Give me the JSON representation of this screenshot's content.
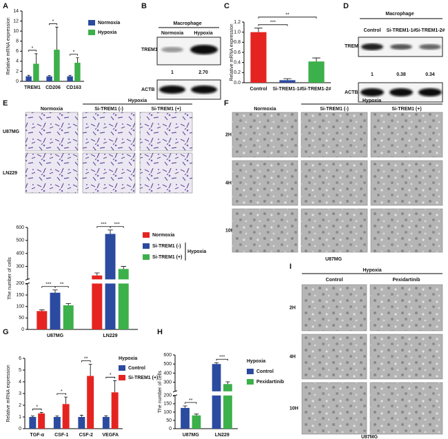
{
  "chart_data": [
    {
      "type": "bar",
      "panel": "A",
      "ylabel": "Relative mRNA expression",
      "categories": [
        "TREM1",
        "CD206",
        "CD163"
      ],
      "series": [
        {
          "name": "Normoxia",
          "color": "#2b4ba0",
          "values": [
            1,
            1,
            1
          ],
          "errors": [
            0.2,
            0.15,
            0.2
          ]
        },
        {
          "name": "Hypoxia",
          "color": "#3cb04a",
          "values": [
            3.5,
            6.3,
            3.7
          ],
          "errors": [
            2.0,
            4.5,
            1.0
          ]
        }
      ],
      "ylim": [
        0,
        14
      ],
      "yticks": [
        0,
        2,
        4,
        6,
        8,
        10,
        12,
        14
      ],
      "annotations": [
        "*",
        "*",
        "*"
      ]
    },
    {
      "type": "bar",
      "panel": "C",
      "ylabel": "Relative mRNA expression",
      "categories": [
        "Control",
        "Si-TREM1-1#",
        "Si-TREM1-2#"
      ],
      "values": [
        1.0,
        0.05,
        0.42
      ],
      "errors": [
        0.08,
        0.03,
        0.07
      ],
      "colors": [
        "#e52421",
        "#2b4ba0",
        "#3cb04a"
      ],
      "ylim": [
        0,
        1.2
      ],
      "yticks": [
        {
          "value": 0,
          "label": "0.0"
        },
        {
          "value": 0.2,
          "label": "0.2"
        },
        {
          "value": 0.4,
          "label": "0.4"
        },
        {
          "value": 0.6,
          "label": "0.6"
        },
        {
          "value": 0.8,
          "label": "0.8"
        },
        {
          "value": 1.0,
          "label": "1.0"
        },
        {
          "value": 1.2,
          "label": "1.2"
        }
      ],
      "annotations": [
        "***",
        "**"
      ]
    },
    {
      "type": "bar",
      "ylabel": "The number of cells",
      "categories": [
        "U87MG",
        "LN229"
      ],
      "series": [
        {
          "name": "Normoxia",
          "color": "#e52421",
          "values": [
            80,
            230
          ],
          "errors": [
            5,
            20
          ]
        },
        {
          "name": "Si-TREM1 (-)",
          "color": "#2b4ba0",
          "values": [
            160,
            550
          ],
          "errors": [
            12,
            30
          ]
        },
        {
          "name": "Si-TREM1 (+)",
          "color": "#3cb04a",
          "values": [
            105,
            280
          ],
          "errors": [
            8,
            20
          ]
        }
      ],
      "legend_title": "Hypoxia",
      "ylim": [
        0,
        600
      ],
      "yticks": [
        0,
        50,
        100,
        150,
        200,
        300,
        400,
        500,
        600
      ],
      "annotations": [
        "***",
        "**",
        "***",
        "***"
      ]
    },
    {
      "type": "bar",
      "panel": "G",
      "ylabel": "Relative mRNA expression",
      "categories": [
        "TGF-α",
        "CSF-1",
        "CSF-2",
        "VEGFA"
      ],
      "series": [
        {
          "name": "Control",
          "color": "#2b4ba0",
          "values": [
            1,
            1,
            1,
            1
          ],
          "errors": [
            0.08,
            0.08,
            0.15,
            0.1
          ]
        },
        {
          "name": "Si-TREM1 (+)",
          "color": "#e52421",
          "values": [
            1.3,
            2.1,
            4.5,
            3.1
          ],
          "errors": [
            0.08,
            0.6,
            1.0,
            1.0
          ]
        }
      ],
      "legend_title": "Hypoxia",
      "ylim": [
        0,
        6
      ],
      "yticks": [
        0,
        1,
        2,
        3,
        4,
        5,
        6
      ],
      "annotations": [
        "*",
        "*",
        "**",
        "*"
      ]
    },
    {
      "type": "bar",
      "panel": "H",
      "ylabel": "The number of cells",
      "categories": [
        "U87MG",
        "LN229"
      ],
      "series": [
        {
          "name": "Control",
          "color": "#2b4ba0",
          "values": [
            125,
            500
          ],
          "errors": [
            12,
            15
          ]
        },
        {
          "name": "Pexidartinib",
          "color": "#3cb04a",
          "values": [
            80,
            280
          ],
          "errors": [
            8,
            25
          ]
        }
      ],
      "legend_title": "Hypoxia",
      "ylim": [
        0,
        600
      ],
      "yticks": [
        0,
        50,
        100,
        150,
        200,
        300,
        400,
        500,
        600
      ],
      "annotations": [
        "**",
        "***"
      ]
    }
  ],
  "blots": [
    {
      "label": "B",
      "header": "Macrophage",
      "lanes": [
        "Normoxia",
        "Hypoxia"
      ],
      "rows": [
        "TREM1",
        "ACTB"
      ],
      "quantification": [
        "1",
        "2.70"
      ]
    },
    {
      "label": "D",
      "header": "Macrophage",
      "lanes": [
        "Control",
        "Si-TREM1-1#",
        "Si-TREM1-2#"
      ],
      "rows": [
        "TREM1",
        "ACTB"
      ],
      "quantification": [
        "1",
        "0.38",
        "0.34"
      ]
    }
  ],
  "micrographs": [
    {
      "label": "E",
      "header": "Hypoxia",
      "columns": [
        "Normoxia",
        "Si-TREM1  (-)",
        "Si-TREM1  (+)"
      ],
      "rows": [
        "U87MG",
        "LN229"
      ]
    },
    {
      "label": "F",
      "header": "Hypoxia",
      "columns": [
        "Normoxia",
        "Si-TREM1  (-)",
        "Si-TREM1  (+)"
      ],
      "rows": [
        "2H",
        "4H",
        "10H"
      ],
      "caption": "U87MG"
    },
    {
      "label": "I",
      "header": "Hypoxia",
      "columns": [
        "Control",
        "Pexidartinib"
      ],
      "rows": [
        "2H",
        "4H",
        "10H"
      ],
      "caption": "U87MG"
    }
  ]
}
